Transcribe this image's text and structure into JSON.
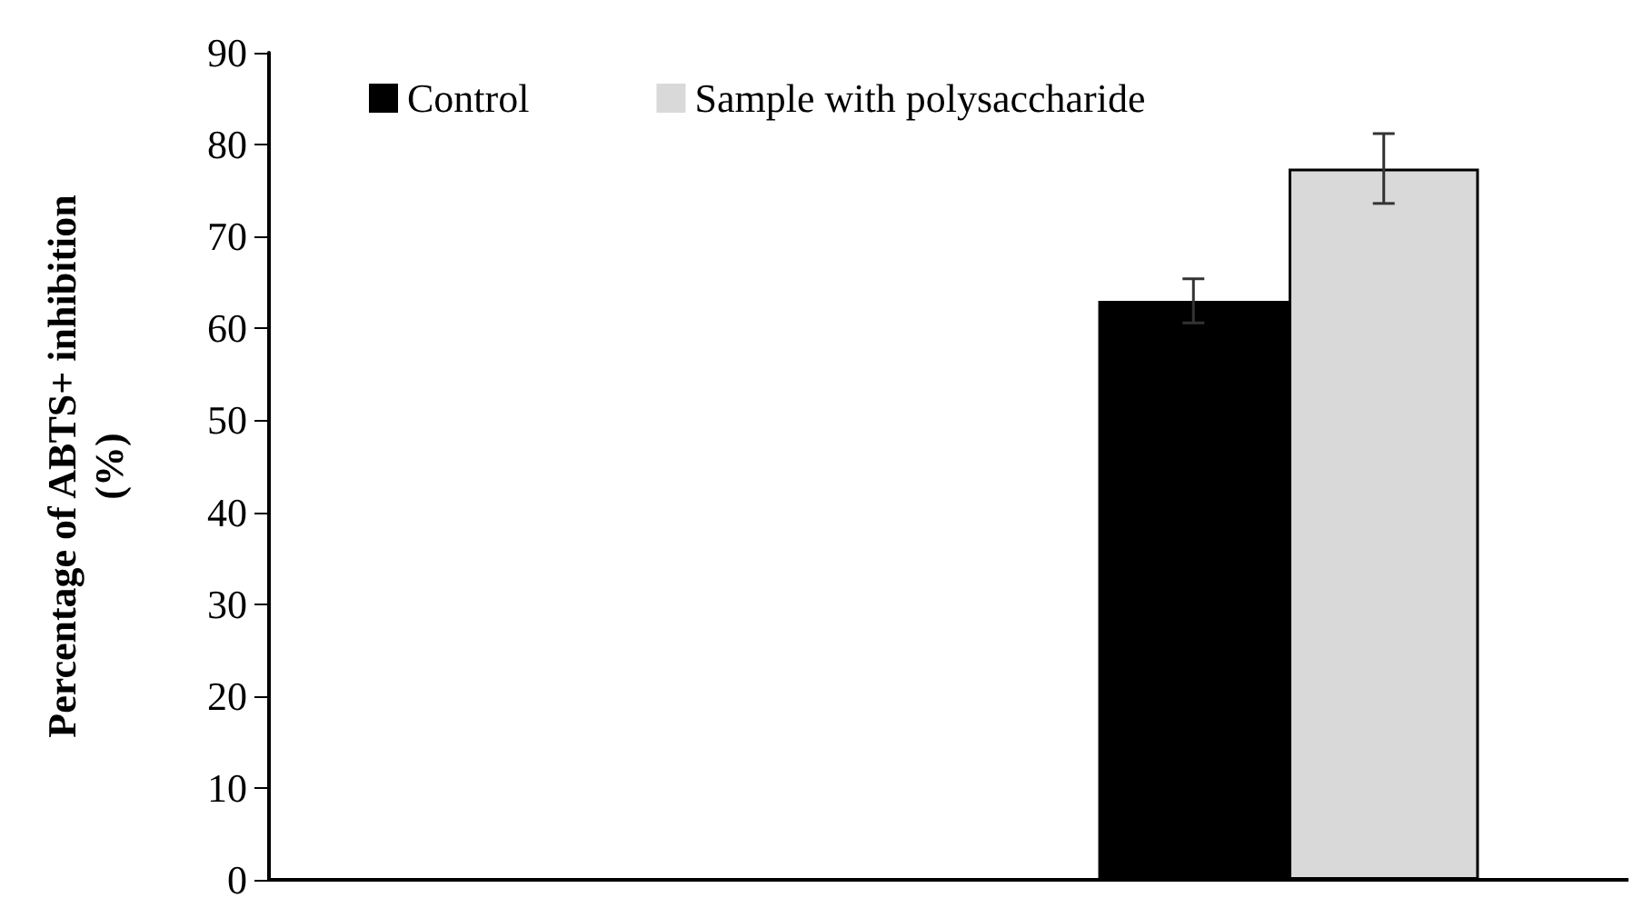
{
  "chart_data": {
    "type": "bar",
    "ylabel": "Percentage of ABTS+ inhibition\n(%)",
    "categories": [
      null,
      null
    ],
    "series": [
      {
        "name": "Control",
        "color": "#000000",
        "values": [
          null,
          63
        ],
        "errors": [
          null,
          2.4
        ]
      },
      {
        "name": "Sample with polysaccharide",
        "color": "#d9d9d9",
        "values": [
          null,
          77.4
        ],
        "errors": [
          null,
          3.8
        ]
      }
    ],
    "ylim": [
      0,
      90
    ],
    "yticks": [
      0,
      10,
      20,
      30,
      40,
      50,
      60,
      70,
      80,
      90
    ],
    "grid": false,
    "legend": "top left"
  }
}
